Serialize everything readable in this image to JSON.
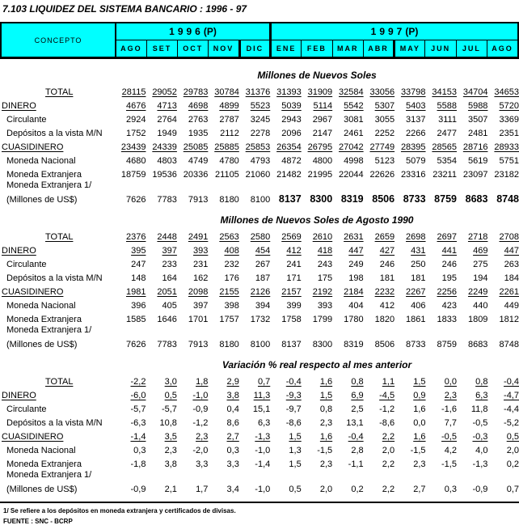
{
  "title": "7.103  LIQUIDEZ DEL SISTEMA BANCARIO : 1996 - 97",
  "header": {
    "concepto": "CONCEPTO",
    "years": [
      {
        "digits": "1996",
        "suffix": "(P)"
      },
      {
        "digits": "1997",
        "suffix": "(P)"
      }
    ],
    "months": [
      "AGO",
      "SET",
      "OCT",
      "NOV",
      "DIC",
      "ENE",
      "FEB",
      "MAR",
      "ABR",
      "MAY",
      "JUN",
      "JUL",
      "AGO"
    ]
  },
  "sections": [
    {
      "title": "Millones de Nuevos Soles",
      "rows": [
        {
          "label": "TOTAL",
          "cls": "total",
          "underline": true,
          "values": [
            "28115",
            "29052",
            "29783",
            "30784",
            "31376",
            "31393",
            "31909",
            "32584",
            "33056",
            "33798",
            "34153",
            "34704",
            "34653"
          ]
        },
        {
          "label": "DINERO",
          "cls": "major",
          "underline": true,
          "values": [
            "4676",
            "4713",
            "4698",
            "4899",
            "5523",
            "5039",
            "5114",
            "5542",
            "5307",
            "5403",
            "5588",
            "5988",
            "5720"
          ]
        },
        {
          "label": "Circulante",
          "cls": "minor",
          "values": [
            "2924",
            "2764",
            "2763",
            "2787",
            "3245",
            "2943",
            "2967",
            "3081",
            "3055",
            "3137",
            "3111",
            "3507",
            "3369"
          ]
        },
        {
          "label": "Depósitos a la vista M/N",
          "cls": "minor",
          "values": [
            "1752",
            "1949",
            "1935",
            "2112",
            "2278",
            "2096",
            "2147",
            "2461",
            "2252",
            "2266",
            "2477",
            "2481",
            "2351"
          ]
        },
        {
          "label": "CUASIDINERO",
          "cls": "major",
          "underline": true,
          "values": [
            "23439",
            "24339",
            "25085",
            "25885",
            "25853",
            "26354",
            "26795",
            "27042",
            "27749",
            "28395",
            "28565",
            "28716",
            "28933"
          ]
        },
        {
          "label": "Moneda Nacional",
          "cls": "minor",
          "values": [
            "4680",
            "4803",
            "4749",
            "4780",
            "4793",
            "4872",
            "4800",
            "4998",
            "5123",
            "5079",
            "5354",
            "5619",
            "5751"
          ]
        },
        {
          "label": "Moneda Extranjera",
          "cls": "minor",
          "values": [
            "18759",
            "19536",
            "20336",
            "21105",
            "21060",
            "21482",
            "21995",
            "22044",
            "22626",
            "23316",
            "23211",
            "23097",
            "23182"
          ]
        },
        {
          "label": "Moneda Extranjera 1/",
          "cls": "minor",
          "half": true,
          "values": []
        },
        {
          "label": "(Millones de US$)",
          "cls": "minor",
          "bold_from": 5,
          "values": [
            "7626",
            "7783",
            "7913",
            "8180",
            "8100",
            "8137",
            "8300",
            "8319",
            "8506",
            "8733",
            "8759",
            "8683",
            "8748"
          ]
        }
      ]
    },
    {
      "title": "Millones de Nuevos Soles de Agosto 1990",
      "rows": [
        {
          "label": "TOTAL",
          "cls": "total",
          "underline": true,
          "values": [
            "2376",
            "2448",
            "2491",
            "2563",
            "2580",
            "2569",
            "2610",
            "2631",
            "2659",
            "2698",
            "2697",
            "2718",
            "2708"
          ]
        },
        {
          "label": "DINERO",
          "cls": "major",
          "underline": true,
          "values": [
            "395",
            "397",
            "393",
            "408",
            "454",
            "412",
            "418",
            "447",
            "427",
            "431",
            "441",
            "469",
            "447"
          ]
        },
        {
          "label": "Circulante",
          "cls": "minor",
          "values": [
            "247",
            "233",
            "231",
            "232",
            "267",
            "241",
            "243",
            "249",
            "246",
            "250",
            "246",
            "275",
            "263"
          ]
        },
        {
          "label": "Depósitos a la vista M/N",
          "cls": "minor",
          "values": [
            "148",
            "164",
            "162",
            "176",
            "187",
            "171",
            "175",
            "198",
            "181",
            "181",
            "195",
            "194",
            "184"
          ]
        },
        {
          "label": "CUASIDINERO",
          "cls": "major",
          "underline": true,
          "values": [
            "1981",
            "2051",
            "2098",
            "2155",
            "2126",
            "2157",
            "2192",
            "2184",
            "2232",
            "2267",
            "2256",
            "2249",
            "2261"
          ]
        },
        {
          "label": "Moneda Nacional",
          "cls": "minor",
          "values": [
            "396",
            "405",
            "397",
            "398",
            "394",
            "399",
            "393",
            "404",
            "412",
            "406",
            "423",
            "440",
            "449"
          ]
        },
        {
          "label": "Moneda Extranjera",
          "cls": "minor",
          "values": [
            "1585",
            "1646",
            "1701",
            "1757",
            "1732",
            "1758",
            "1799",
            "1780",
            "1820",
            "1861",
            "1833",
            "1809",
            "1812"
          ]
        },
        {
          "label": "Moneda Extranjera 1/",
          "cls": "minor",
          "half": true,
          "values": []
        },
        {
          "label": "(Millones de US$)",
          "cls": "minor",
          "values": [
            "7626",
            "7783",
            "7913",
            "8180",
            "8100",
            "8137",
            "8300",
            "8319",
            "8506",
            "8733",
            "8759",
            "8683",
            "8748"
          ]
        }
      ]
    },
    {
      "title": "Variación % real respecto al mes anterior",
      "rows": [
        {
          "label": "TOTAL",
          "cls": "total",
          "underline": true,
          "values": [
            "-2,2",
            "3,0",
            "1,8",
            "2,9",
            "0,7",
            "-0,4",
            "1,6",
            "0,8",
            "1,1",
            "1,5",
            "0,0",
            "0,8",
            "-0,4"
          ]
        },
        {
          "label": "DINERO",
          "cls": "major",
          "underline": true,
          "values": [
            "-6,0",
            "0,5",
            "-1,0",
            "3,8",
            "11,3",
            "-9,3",
            "1,5",
            "6,9",
            "-4,5",
            "0,9",
            "2,3",
            "6,3",
            "-4,7"
          ]
        },
        {
          "label": "Circulante",
          "cls": "minor",
          "values": [
            "-5,7",
            "-5,7",
            "-0,9",
            "0,4",
            "15,1",
            "-9,7",
            "0,8",
            "2,5",
            "-1,2",
            "1,6",
            "-1,6",
            "11,8",
            "-4,4"
          ]
        },
        {
          "label": "Depósitos a la vista M/N",
          "cls": "minor",
          "values": [
            "-6,3",
            "10,8",
            "-1,2",
            "8,6",
            "6,3",
            "-8,6",
            "2,3",
            "13,1",
            "-8,6",
            "0,0",
            "7,7",
            "-0,5",
            "-5,2"
          ]
        },
        {
          "label": "CUASIDINERO",
          "cls": "major",
          "underline": true,
          "values": [
            "-1,4",
            "3,5",
            "2,3",
            "2,7",
            "-1,3",
            "1,5",
            "1,6",
            "-0,4",
            "2,2",
            "1,6",
            "-0,5",
            "-0,3",
            "0,5"
          ]
        },
        {
          "label": "Moneda Nacional",
          "cls": "minor",
          "values": [
            "0,3",
            "2,3",
            "-2,0",
            "0,3",
            "-1,0",
            "1,3",
            "-1,5",
            "2,8",
            "2,0",
            "-1,5",
            "4,2",
            "4,0",
            "2,0"
          ]
        },
        {
          "label": "Moneda Extranjera",
          "cls": "minor",
          "values": [
            "-1,8",
            "3,8",
            "3,3",
            "3,3",
            "-1,4",
            "1,5",
            "2,3",
            "-1,1",
            "2,2",
            "2,3",
            "-1,5",
            "-1,3",
            "0,2"
          ]
        },
        {
          "label": "Moneda Extranjera 1/",
          "cls": "minor",
          "half": true,
          "values": []
        },
        {
          "label": "(Millones de US$)",
          "cls": "minor",
          "values": [
            "-0,9",
            "2,1",
            "1,7",
            "3,4",
            "-1,0",
            "0,5",
            "2,0",
            "0,2",
            "2,2",
            "2,7",
            "0,3",
            "-0,9",
            "0,7"
          ]
        }
      ]
    }
  ],
  "footer": {
    "note": "1/ Se refiere a los depósitos en moneda extranjera y certificados de divisas.",
    "source": "FUENTE : SNC - BCRP"
  }
}
